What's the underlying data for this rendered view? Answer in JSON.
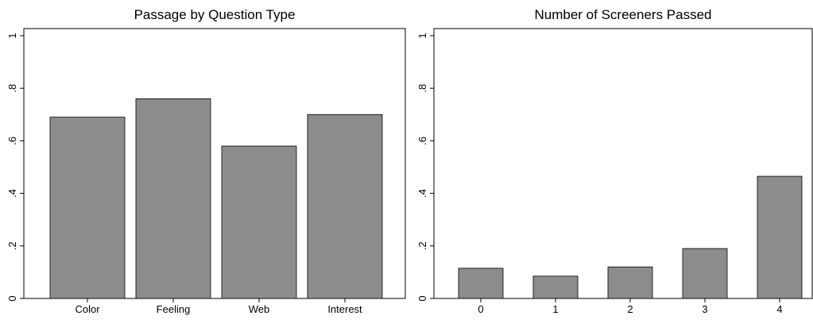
{
  "chart_data": [
    {
      "type": "bar",
      "title": "Passage by Question Type",
      "categories": [
        "Color",
        "Feeling",
        "Web",
        "Interest"
      ],
      "values": [
        0.69,
        0.76,
        0.58,
        0.7
      ],
      "color": "#8c8c8c",
      "ylim": [
        0,
        1
      ],
      "yticks": [
        0,
        {
          "value": 0.2,
          "label": ".2"
        },
        {
          "value": 0.4,
          "label": ".4"
        },
        {
          "value": 0.6,
          "label": ".6"
        },
        {
          "value": 0.8,
          "label": ".8"
        },
        1
      ]
    },
    {
      "type": "bar",
      "title": "Number of Screeners Passed",
      "categories": [
        "0",
        "1",
        "2",
        "3",
        "4"
      ],
      "values": [
        0.115,
        0.085,
        0.12,
        0.19,
        0.465
      ],
      "color": "#8c8c8c",
      "ylim": [
        0,
        1
      ],
      "yticks": [
        0,
        {
          "value": 0.2,
          "label": ".2"
        },
        {
          "value": 0.4,
          "label": ".4"
        },
        {
          "value": 0.6,
          "label": ".6"
        },
        {
          "value": 0.8,
          "label": ".8"
        },
        1
      ]
    }
  ]
}
